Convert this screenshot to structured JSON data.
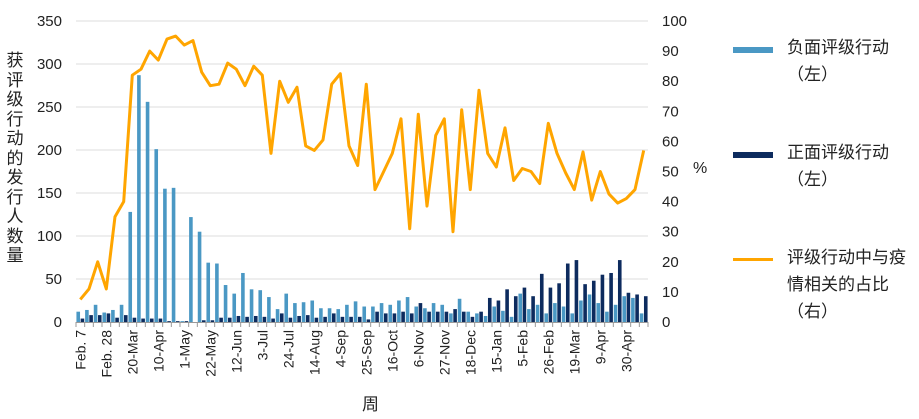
{
  "chart_data": {
    "type": "bar",
    "xlabel": "周",
    "ylabel": "获评级行动的发行人数量",
    "ylabel_right": "%",
    "ylim": [
      0,
      350
    ],
    "yticks": [
      0,
      50,
      100,
      150,
      200,
      250,
      300,
      350
    ],
    "ylim_right": [
      0,
      100
    ],
    "yticks_right": [
      0,
      10,
      20,
      30,
      40,
      50,
      60,
      70,
      80,
      90,
      100
    ],
    "grid": true,
    "legend": "right",
    "x_tick_labels": [
      "Feb. 7",
      "Feb. 28",
      "20-Mar",
      "10-Apr",
      "1-May",
      "22-May",
      "12-Jun",
      "3-Jul",
      "24-Jul",
      "14-Aug",
      "4-Sep",
      "25-Sep",
      "16-Oct",
      "6-Nov",
      "27-Nov",
      "18-Dec",
      "15-Jan",
      "5-Feb",
      "26-Feb",
      "19-Mar",
      "9-Apr",
      "30-Apr"
    ],
    "category_count": 66,
    "series": [
      {
        "name": "负面评级行动（左）",
        "type": "bar",
        "axis": "left",
        "color": "#4a98c4",
        "values": [
          12,
          14,
          20,
          11,
          14,
          20,
          128,
          287,
          256,
          201,
          155,
          156,
          1,
          122,
          105,
          69,
          68,
          43,
          33,
          57,
          38,
          37,
          29,
          15,
          33,
          22,
          23,
          25,
          16,
          16,
          15,
          20,
          24,
          18,
          18,
          22,
          20,
          25,
          29,
          18,
          16,
          22,
          20,
          10,
          27,
          12,
          10,
          7,
          18,
          13,
          6,
          33,
          15,
          20,
          10,
          22,
          18,
          10,
          25,
          32,
          22,
          12,
          20,
          30,
          28,
          10
        ]
      },
      {
        "name": "正面评级行动（左）",
        "type": "bar",
        "axis": "left",
        "color": "#0d2b5e",
        "values": [
          4,
          8,
          8,
          10,
          5,
          8,
          5,
          4,
          4,
          4,
          1,
          1,
          1,
          0,
          2,
          2,
          5,
          5,
          7,
          6,
          7,
          6,
          4,
          10,
          5,
          7,
          8,
          5,
          6,
          10,
          6,
          6,
          6,
          3,
          12,
          10,
          10,
          12,
          10,
          22,
          12,
          12,
          12,
          15,
          12,
          6,
          12,
          28,
          25,
          38,
          30,
          40,
          30,
          56,
          40,
          45,
          68,
          72,
          44,
          48,
          55,
          57,
          72,
          34,
          32,
          30
        ]
      },
      {
        "name": "评级行动中与疫情相关的占比（右）",
        "type": "line",
        "axis": "right",
        "color": "#ffa500",
        "values": [
          7.5,
          11,
          20,
          11,
          35,
          40,
          82,
          84,
          90,
          87,
          94,
          95,
          92,
          93.5,
          83,
          78.5,
          79,
          86,
          84,
          78.5,
          85,
          82,
          56,
          80,
          73,
          78,
          58.5,
          57,
          60.5,
          79,
          82.5,
          58.5,
          52,
          79,
          44,
          50,
          56,
          67.5,
          31,
          69,
          38.5,
          62,
          67.5,
          30,
          70.5,
          44,
          77,
          56,
          51.5,
          64.5,
          47,
          51,
          50,
          46,
          66,
          56,
          49.5,
          44,
          56.5,
          40.5,
          50,
          42.5,
          39.5,
          41,
          44,
          57
        ]
      }
    ]
  },
  "legend": [
    {
      "label": "负面评级行动（左）",
      "color": "#4a98c4"
    },
    {
      "label": "正面评级行动（左）",
      "color": "#0d2b5e"
    },
    {
      "label": "评级行动中与疫情相关的占比（右）",
      "color": "#ffa500"
    }
  ]
}
